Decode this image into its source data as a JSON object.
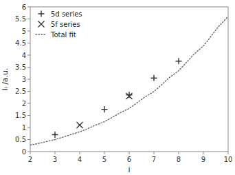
{
  "chart_data": {
    "type": "scatter",
    "x_label": "i",
    "y_label": "Iᵢ /a.u.",
    "xlim": [
      2,
      10
    ],
    "ylim": [
      0,
      6
    ],
    "xticks": [
      2,
      3,
      4,
      5,
      6,
      7,
      8,
      9,
      10
    ],
    "yticks": [
      0,
      0.5,
      1,
      1.5,
      2,
      2.5,
      3,
      3.5,
      4,
      4.5,
      5,
      5.5,
      6
    ],
    "grid": false,
    "legend": "upper-left",
    "series": [
      {
        "name": "5d series",
        "type": "scatter",
        "color": "#333333",
        "marker": "plus",
        "x": [
          3,
          5,
          6,
          7,
          8
        ],
        "values": [
          0.7,
          1.75,
          2.35,
          3.05,
          3.75
        ]
      },
      {
        "name": "5f series",
        "type": "scatter",
        "color": "#333333",
        "marker": "x",
        "x": [
          4,
          6
        ],
        "values": [
          1.1,
          2.3
        ]
      },
      {
        "name": "Total fit",
        "type": "line",
        "color": "#666666",
        "line_style": "dotted",
        "x": [
          2.0,
          2.3,
          2.6,
          3.0,
          3.3,
          3.6,
          4.0,
          4.3,
          4.6,
          5.0,
          5.3,
          5.6,
          6.0,
          6.3,
          6.6,
          7.0,
          7.3,
          7.6,
          8.0,
          8.3,
          8.6,
          9.0,
          9.3,
          9.6,
          10.0
        ],
        "values": [
          0.27,
          0.33,
          0.4,
          0.5,
          0.59,
          0.69,
          0.82,
          0.94,
          1.08,
          1.24,
          1.41,
          1.59,
          1.79,
          2.01,
          2.24,
          2.49,
          2.76,
          3.05,
          3.35,
          3.68,
          4.02,
          4.38,
          4.77,
          5.17,
          5.6
        ]
      }
    ]
  }
}
